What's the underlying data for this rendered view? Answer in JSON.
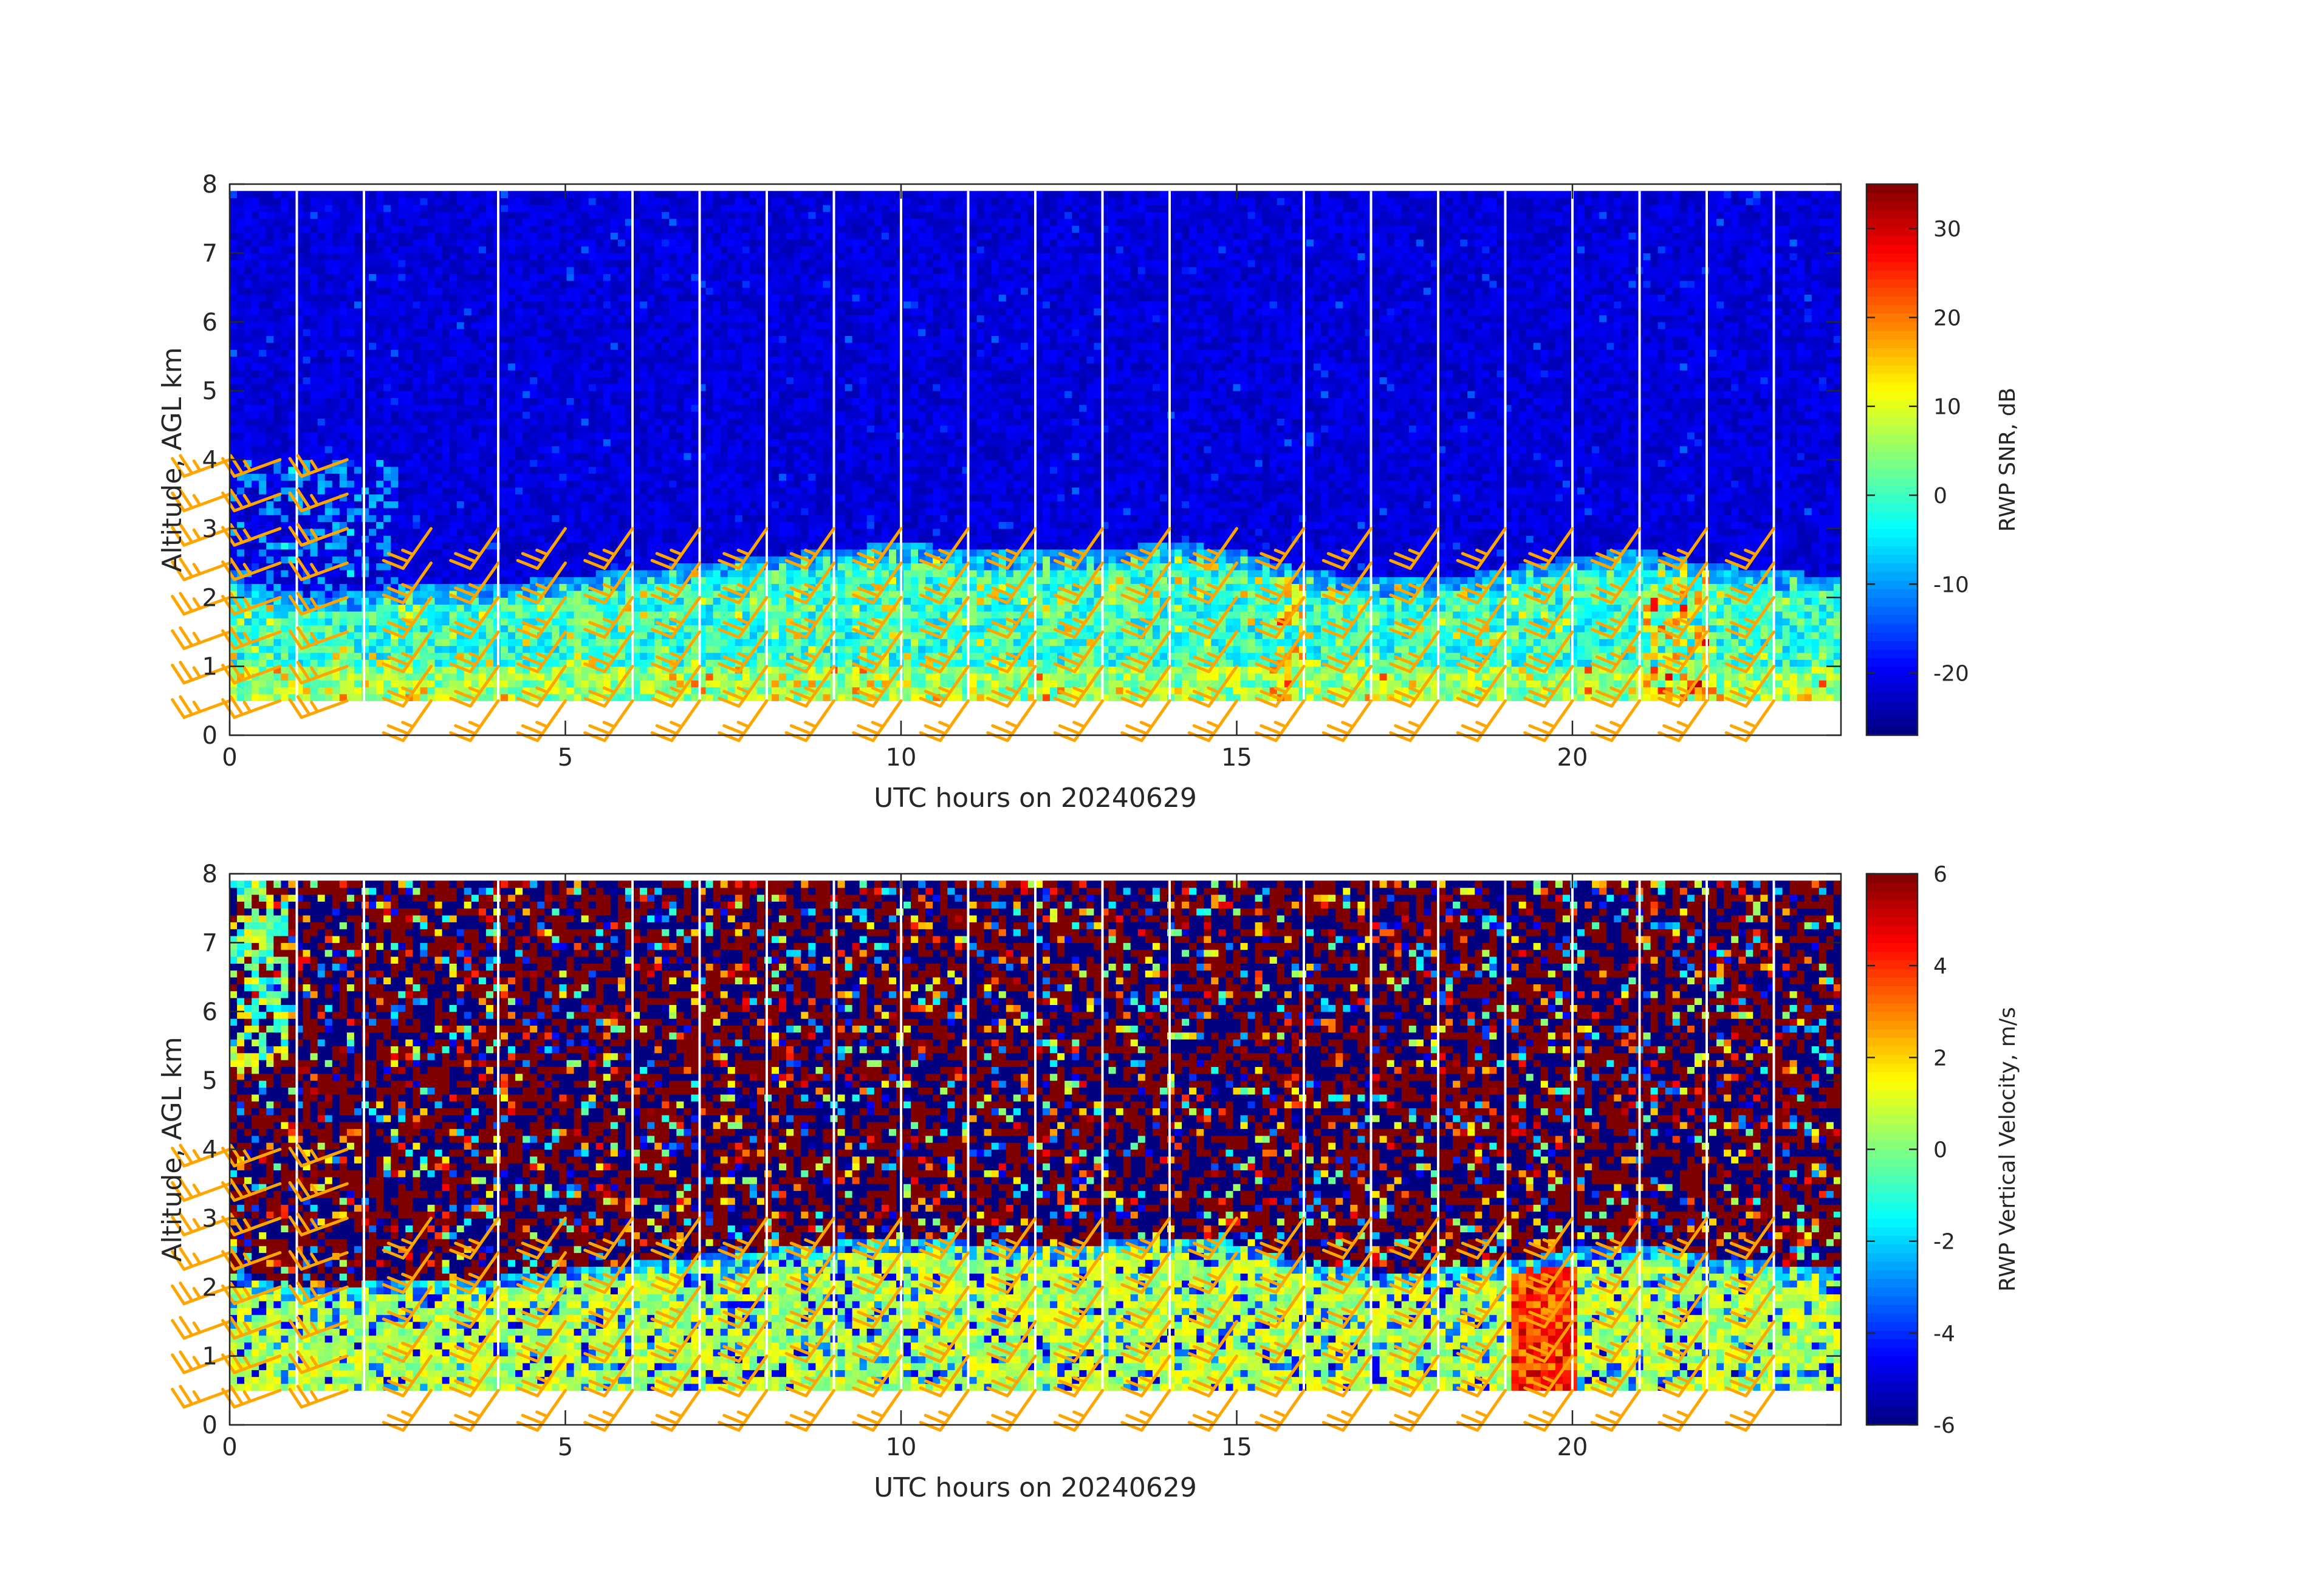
{
  "figure": {
    "background": "#ffffff",
    "barb_color": "#ffa500",
    "gap_color": "#ffffff",
    "colormap": "jet"
  },
  "chart_data": [
    {
      "type": "heatmap",
      "title": "",
      "xlabel": "UTC hours on 20240629",
      "ylabel": "Altitude, AGL km",
      "xlim": [
        0,
        24
      ],
      "ylim": [
        0,
        8
      ],
      "xticks": [
        "0",
        "5",
        "10",
        "15",
        "20"
      ],
      "yticks": [
        "0",
        "1",
        "2",
        "3",
        "4",
        "5",
        "6",
        "7",
        "8"
      ],
      "data_range_km": [
        0.5,
        7.9
      ],
      "colorbar": {
        "label": "RWP SNR, dB",
        "min": -27,
        "max": 35,
        "ticks": [
          "-20",
          "-10",
          "0",
          "10",
          "20",
          "30"
        ]
      },
      "gaps_hours": [
        1.0,
        2.0,
        4.0,
        6.0,
        7.0,
        8.0,
        9.0,
        10.0,
        11.0,
        12.0,
        13.0,
        14.0,
        16.0,
        17.0,
        18.0,
        19.0,
        20.0,
        21.0,
        22.0,
        23.0
      ],
      "boundary_layer_top_km": [
        [
          0,
          2.0
        ],
        [
          1,
          1.7
        ],
        [
          2,
          1.8
        ],
        [
          3,
          1.9
        ],
        [
          4,
          1.9
        ],
        [
          5,
          2.0
        ],
        [
          6,
          2.1
        ],
        [
          7,
          2.2
        ],
        [
          8,
          2.3
        ],
        [
          9,
          2.4
        ],
        [
          10,
          2.5
        ],
        [
          11,
          2.4
        ],
        [
          12,
          2.4
        ],
        [
          13,
          2.4
        ],
        [
          14,
          2.5
        ],
        [
          15,
          2.4
        ],
        [
          16,
          2.1
        ],
        [
          17,
          2.0
        ],
        [
          18,
          2.0
        ],
        [
          19,
          2.1
        ],
        [
          20,
          2.3
        ],
        [
          21,
          2.4
        ],
        [
          22,
          2.2
        ],
        [
          23,
          2.1
        ],
        [
          24,
          2.0
        ]
      ]
    },
    {
      "type": "heatmap",
      "title": "",
      "xlabel": "UTC hours on 20240629",
      "ylabel": "Altitude, AGL km",
      "xlim": [
        0,
        24
      ],
      "ylim": [
        0,
        8
      ],
      "xticks": [
        "0",
        "5",
        "10",
        "15",
        "20"
      ],
      "yticks": [
        "0",
        "1",
        "2",
        "3",
        "4",
        "5",
        "6",
        "7",
        "8"
      ],
      "data_range_km": [
        0.5,
        7.9
      ],
      "colorbar": {
        "label": "RWP Vertical Velocity, m/s",
        "min": -6,
        "max": 6,
        "ticks": [
          "-6",
          "-4",
          "-2",
          "0",
          "2",
          "4",
          "6"
        ]
      },
      "gaps_hours": [
        1.0,
        2.0,
        4.0,
        6.0,
        7.0,
        8.0,
        9.0,
        10.0,
        11.0,
        12.0,
        13.0,
        14.0,
        16.0,
        17.0,
        18.0,
        19.0,
        20.0,
        21.0,
        22.0,
        23.0
      ],
      "boundary_layer_top_km": [
        [
          0,
          2.0
        ],
        [
          1,
          1.7
        ],
        [
          2,
          1.8
        ],
        [
          3,
          1.9
        ],
        [
          4,
          1.9
        ],
        [
          5,
          2.0
        ],
        [
          6,
          2.1
        ],
        [
          7,
          2.2
        ],
        [
          8,
          2.3
        ],
        [
          9,
          2.4
        ],
        [
          10,
          2.5
        ],
        [
          11,
          2.4
        ],
        [
          12,
          2.4
        ],
        [
          13,
          2.4
        ],
        [
          14,
          2.5
        ],
        [
          15,
          2.4
        ],
        [
          16,
          2.1
        ],
        [
          17,
          2.0
        ],
        [
          18,
          2.0
        ],
        [
          19,
          2.1
        ],
        [
          20,
          2.3
        ],
        [
          21,
          2.4
        ],
        [
          22,
          2.2
        ],
        [
          23,
          2.1
        ],
        [
          24,
          2.0
        ]
      ]
    }
  ],
  "wind_barbs": {
    "times_hours": [
      0,
      0.75,
      1.75,
      3,
      4,
      5,
      6,
      7,
      8,
      9,
      10,
      11,
      12,
      13,
      14,
      15,
      16,
      17,
      18,
      19,
      20,
      21,
      22,
      23
    ],
    "heights_km": [
      0.5,
      1.0,
      1.5,
      2.0,
      2.5,
      3.0,
      3.5,
      4.0
    ],
    "direction_deg": {
      "early_hours_0_to_2_5": 250,
      "later_hours": 215
    },
    "speed_knots_typical": 20
  }
}
